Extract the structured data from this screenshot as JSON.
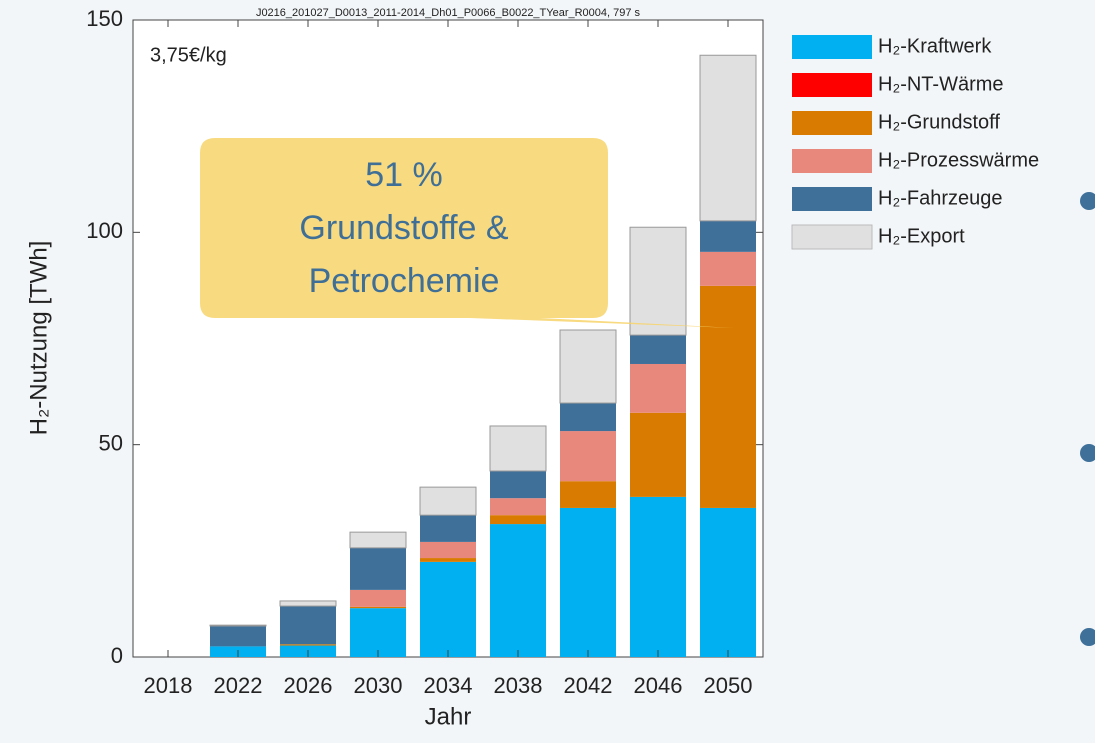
{
  "chart_data": {
    "type": "stacked_bar",
    "title": "J0216_201027_D0013_2011-2014_Dh01_P0066_B0022_TYear_R0004, 797 s",
    "annotation": "3,75€/kg",
    "callout": [
      "51 %",
      "Grundstoffe &",
      "Petrochemie"
    ],
    "x_label": "Jahr",
    "y_label": "H₂-Nutzung [TWh]",
    "categories": [
      "2018",
      "2022",
      "2026",
      "2030",
      "2034",
      "2038",
      "2042",
      "2046",
      "2050"
    ],
    "series": [
      {
        "name": "H₂-Kraftwerk",
        "color": "#00b0f0",
        "values": [
          0,
          2.5,
          2.7,
          11.5,
          22.4,
          31.3,
          35.1,
          37.7,
          35.1
        ]
      },
      {
        "name": "H₂-NT-Wärme",
        "color": "#ff0000",
        "values": [
          0,
          0,
          0,
          0,
          0,
          0,
          0,
          0,
          0
        ]
      },
      {
        "name": "H₂-Grundstoff",
        "color": "#d97b00",
        "values": [
          0,
          0,
          0.3,
          0.3,
          0.9,
          2.1,
          6.3,
          19.8,
          52.3
        ]
      },
      {
        "name": "H₂-Prozesswärme",
        "color": "#e8877c",
        "values": [
          0,
          0,
          0,
          4,
          3.8,
          4,
          11.8,
          11.5,
          8
        ]
      },
      {
        "name": "H₂-Fahrzeuge",
        "color": "#3f709a",
        "values": [
          0,
          4.8,
          9,
          9.9,
          6.3,
          6.4,
          6.6,
          6.8,
          7.3
        ]
      },
      {
        "name": "H₂-Export",
        "color": "#e0e0e0",
        "values": [
          0,
          0.2,
          1.2,
          3.7,
          6.6,
          10.6,
          17.2,
          25.4,
          39
        ]
      }
    ],
    "ylim": [
      0,
      150
    ],
    "yticks": [
      0,
      50,
      100,
      150
    ],
    "legend": "right"
  }
}
